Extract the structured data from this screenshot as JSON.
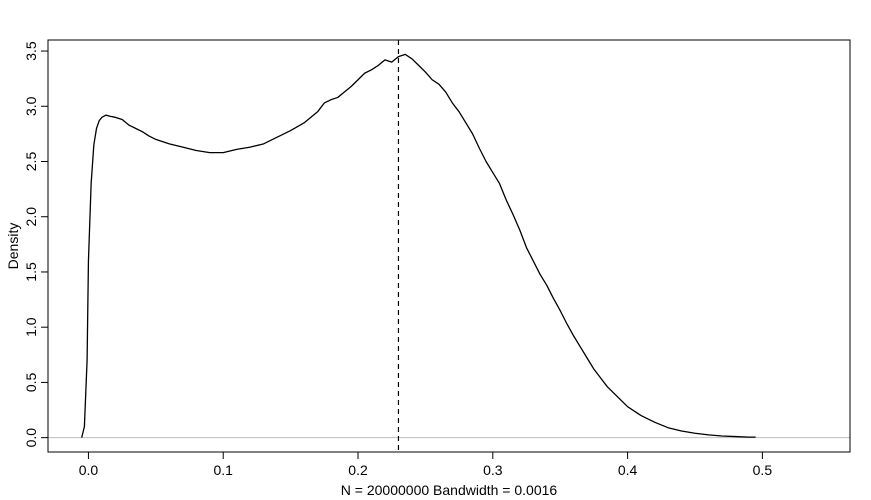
{
  "chart_data": {
    "type": "line",
    "title": "",
    "xlabel": "N = 20000000   Bandwidth = 0.0016",
    "ylabel": "Density",
    "xlim": [
      -0.03,
      0.565
    ],
    "ylim": [
      -0.13,
      3.6
    ],
    "xticks": [
      {
        "value": 0.0,
        "label": "0.0"
      },
      {
        "value": 0.1,
        "label": "0.1"
      },
      {
        "value": 0.2,
        "label": "0.2"
      },
      {
        "value": 0.3,
        "label": "0.3"
      },
      {
        "value": 0.4,
        "label": "0.4"
      },
      {
        "value": 0.5,
        "label": "0.5"
      }
    ],
    "yticks": [
      {
        "value": 0.0,
        "label": "0.0"
      },
      {
        "value": 0.5,
        "label": "0.5"
      },
      {
        "value": 1.0,
        "label": "1.0"
      },
      {
        "value": 1.5,
        "label": "1.5"
      },
      {
        "value": 2.0,
        "label": "2.0"
      },
      {
        "value": 2.5,
        "label": "2.5"
      },
      {
        "value": 3.0,
        "label": "3.0"
      },
      {
        "value": 3.5,
        "label": "3.5"
      }
    ],
    "grid": false,
    "legend": "none",
    "baseline": {
      "y": 0,
      "color": "#bebebe"
    },
    "reference_line": {
      "x": 0.23,
      "style": "dashed",
      "color": "#000000"
    },
    "series": [
      {
        "color": "#000000",
        "x": [
          -0.005,
          -0.003,
          -0.001,
          0.0,
          0.002,
          0.004,
          0.006,
          0.008,
          0.01,
          0.013,
          0.016,
          0.02,
          0.025,
          0.03,
          0.035,
          0.04,
          0.045,
          0.05,
          0.06,
          0.07,
          0.08,
          0.09,
          0.1,
          0.11,
          0.12,
          0.13,
          0.14,
          0.15,
          0.16,
          0.17,
          0.175,
          0.18,
          0.185,
          0.19,
          0.195,
          0.2,
          0.205,
          0.21,
          0.215,
          0.22,
          0.225,
          0.23,
          0.235,
          0.24,
          0.245,
          0.25,
          0.255,
          0.26,
          0.265,
          0.27,
          0.275,
          0.28,
          0.285,
          0.29,
          0.295,
          0.3,
          0.305,
          0.31,
          0.315,
          0.32,
          0.325,
          0.33,
          0.335,
          0.34,
          0.345,
          0.35,
          0.355,
          0.36,
          0.365,
          0.37,
          0.375,
          0.38,
          0.385,
          0.39,
          0.395,
          0.4,
          0.41,
          0.42,
          0.43,
          0.44,
          0.45,
          0.46,
          0.47,
          0.48,
          0.49,
          0.495
        ],
        "y": [
          0.0,
          0.1,
          0.7,
          1.6,
          2.3,
          2.65,
          2.8,
          2.87,
          2.9,
          2.92,
          2.91,
          2.9,
          2.88,
          2.83,
          2.8,
          2.77,
          2.73,
          2.7,
          2.66,
          2.63,
          2.6,
          2.58,
          2.58,
          2.61,
          2.63,
          2.66,
          2.72,
          2.78,
          2.85,
          2.95,
          3.03,
          3.06,
          3.08,
          3.13,
          3.18,
          3.24,
          3.3,
          3.33,
          3.37,
          3.42,
          3.4,
          3.45,
          3.47,
          3.43,
          3.37,
          3.31,
          3.24,
          3.2,
          3.13,
          3.03,
          2.95,
          2.85,
          2.75,
          2.62,
          2.5,
          2.4,
          2.3,
          2.15,
          2.02,
          1.88,
          1.72,
          1.6,
          1.48,
          1.38,
          1.26,
          1.15,
          1.03,
          0.92,
          0.82,
          0.72,
          0.62,
          0.54,
          0.46,
          0.4,
          0.34,
          0.28,
          0.2,
          0.14,
          0.09,
          0.06,
          0.04,
          0.025,
          0.015,
          0.01,
          0.005,
          0.005
        ]
      }
    ]
  }
}
